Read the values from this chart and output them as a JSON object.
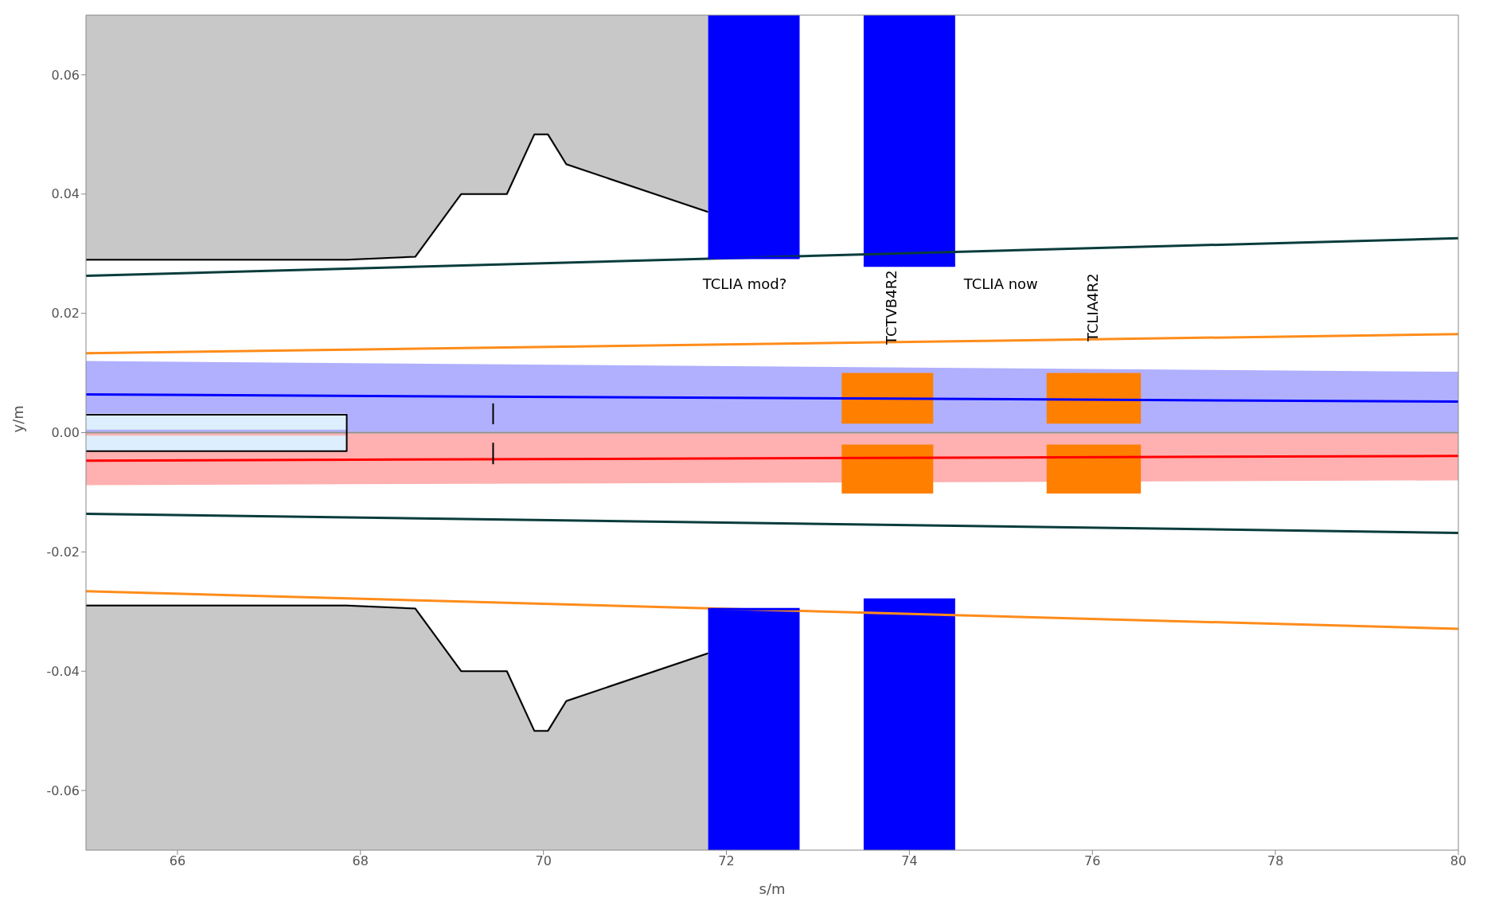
{
  "chart_data": {
    "type": "line",
    "xlabel": "s/m",
    "ylabel": "y/m",
    "xlim": [
      65,
      80
    ],
    "xticks": [
      66,
      68,
      70,
      72,
      74,
      76,
      78,
      80
    ],
    "ylim": [
      -0.07,
      0.07
    ],
    "yticks": [
      -0.06,
      -0.04,
      -0.02,
      {
        "value": 0,
        "label": "0.00"
      },
      0.02,
      0.04,
      0.06
    ],
    "marker": "none",
    "line_style": "solid",
    "ref_lines": [
      {
        "axis": "y",
        "value": 0,
        "color": "#909090"
      }
    ],
    "annotations": [
      "TCLIA mod?",
      "TCTVB4R2",
      "TCLIA now",
      "TCLIA4R2"
    ],
    "series": [
      {
        "color": "#c8c8c8",
        "x": [
          65,
          67.85,
          68.6,
          69.1,
          69.6,
          69.9,
          70.05,
          70.25,
          71.8
        ],
        "values": [
          0.029,
          0.029,
          0.0295,
          0.04,
          0.04,
          0.05,
          0.05,
          0.045,
          0.037
        ],
        "lower": [
          0.029,
          0.029,
          0.0295,
          0.04,
          0.04,
          0.05,
          0.05,
          0.045,
          0.037
        ],
        "upper": [
          0.07,
          0.07,
          0.07,
          0.07,
          0.07,
          0.07,
          0.07,
          0.07,
          0.07
        ]
      },
      {
        "color": "#c8c8c8",
        "x": [
          65,
          67.85,
          68.6,
          69.1,
          69.6,
          69.9,
          70.05,
          70.25,
          71.8
        ],
        "values": [
          -0.029,
          -0.029,
          -0.0295,
          -0.04,
          -0.04,
          -0.05,
          -0.05,
          -0.045,
          -0.037
        ],
        "lower": [
          -0.07,
          -0.07,
          -0.07,
          -0.07,
          -0.07,
          -0.07,
          -0.07,
          -0.07,
          -0.07
        ],
        "upper": [
          -0.029,
          -0.029,
          -0.0295,
          -0.04,
          -0.04,
          -0.05,
          -0.05,
          -0.045,
          -0.037
        ]
      },
      {
        "color": "#b0b0ff",
        "x": [
          65,
          80
        ],
        "values": [
          0.0003,
          0.0003
        ],
        "lower": [
          0.0003,
          0.0003
        ],
        "upper": [
          0.012,
          0.0102
        ]
      },
      {
        "color": "#ffb0b0",
        "x": [
          65,
          80
        ],
        "values": [
          -0.0003,
          -0.0003
        ],
        "lower": [
          -0.0088,
          -0.008
        ],
        "upper": [
          -0.0003,
          -0.0003
        ]
      },
      {
        "color": "#ddeeff",
        "x": [
          65,
          67.85
        ],
        "values": [
          0.003,
          0.003
        ],
        "lower": [
          -0.0031,
          -0.0031
        ],
        "upper": [
          0.003,
          0.003
        ]
      },
      {
        "color": "#000000",
        "x": [
          65,
          67.85,
          67.85,
          65
        ],
        "values": [
          0.003,
          0.003,
          -0.0031,
          -0.0031
        ]
      },
      {
        "color": "#000000",
        "x": [
          65,
          67.85,
          68.6,
          69.1,
          69.6,
          69.9,
          70.05,
          70.25,
          71.8
        ],
        "values": [
          0.029,
          0.029,
          0.0295,
          0.04,
          0.04,
          0.05,
          0.05,
          0.045,
          0.037
        ]
      },
      {
        "color": "#000000",
        "x": [
          65,
          67.85,
          68.6,
          69.1,
          69.6,
          69.9,
          70.05,
          70.25,
          71.8
        ],
        "values": [
          -0.029,
          -0.029,
          -0.0295,
          -0.04,
          -0.04,
          -0.05,
          -0.05,
          -0.045,
          -0.037
        ]
      },
      {
        "color": "#0a3c3c",
        "x": [
          65,
          80
        ],
        "values": [
          0.0263,
          0.0326
        ]
      },
      {
        "color": "#0a3c3c",
        "x": [
          65,
          80
        ],
        "values": [
          -0.0136,
          -0.0168
        ]
      },
      {
        "color": "#ff8c1a",
        "x": [
          65,
          80
        ],
        "values": [
          0.0133,
          0.0165
        ]
      },
      {
        "color": "#ff8c1a",
        "x": [
          65,
          80
        ],
        "values": [
          -0.0266,
          -0.0329
        ]
      },
      {
        "color": "#0000ff",
        "x": [
          65,
          80
        ],
        "values": [
          0.0064,
          0.0052
        ]
      },
      {
        "color": "#ff0000",
        "x": [
          65,
          80
        ],
        "values": [
          -0.0047,
          -0.0039
        ]
      },
      {
        "color": "#000000",
        "x": [
          69.45,
          69.45
        ],
        "values": [
          0.0049,
          0.0014
        ]
      },
      {
        "color": "#000000",
        "x": [
          69.45,
          69.45
        ],
        "values": [
          -0.0017,
          -0.0053
        ]
      },
      {
        "color": "#0000ff",
        "x": [
          71.8,
          72.8
        ],
        "values": [
          0.0293,
          0.0293
        ],
        "lower": [
          0.0293,
          0.0293
        ],
        "upper": [
          0.07,
          0.07
        ]
      },
      {
        "color": "#0000ff",
        "x": [
          73.5,
          74.5
        ],
        "values": [
          0.028,
          0.028
        ],
        "lower": [
          0.028,
          0.028
        ],
        "upper": [
          0.07,
          0.07
        ]
      },
      {
        "color": "#0000ff",
        "x": [
          71.8,
          72.8
        ],
        "values": [
          -0.0296,
          -0.0296
        ],
        "lower": [
          -0.07,
          -0.07
        ],
        "upper": [
          -0.0296,
          -0.0296
        ]
      },
      {
        "color": "#0000ff",
        "x": [
          73.5,
          74.5
        ],
        "values": [
          -0.028,
          -0.028
        ],
        "lower": [
          -0.07,
          -0.07
        ],
        "upper": [
          -0.028,
          -0.028
        ]
      },
      {
        "color": "#ff7f00",
        "x": [
          73.26,
          74.26
        ],
        "values": [
          0.0017,
          0.0017
        ],
        "lower": [
          0.0017,
          0.0017
        ],
        "upper": [
          0.01,
          0.01
        ]
      },
      {
        "color": "#ff7f00",
        "x": [
          73.26,
          74.26
        ],
        "values": [
          -0.0022,
          -0.0022
        ],
        "lower": [
          -0.0102,
          -0.0102
        ],
        "upper": [
          -0.0022,
          -0.0022
        ]
      },
      {
        "color": "#ff7f00",
        "x": [
          75.5,
          76.53
        ],
        "values": [
          0.0017,
          0.0017
        ],
        "lower": [
          0.0017,
          0.0017
        ],
        "upper": [
          0.01,
          0.01
        ]
      },
      {
        "color": "#ff7f00",
        "x": [
          75.5,
          76.53
        ],
        "values": [
          -0.0022,
          -0.0022
        ],
        "lower": [
          -0.0102,
          -0.0102
        ],
        "upper": [
          -0.0022,
          -0.0022
        ]
      }
    ]
  }
}
